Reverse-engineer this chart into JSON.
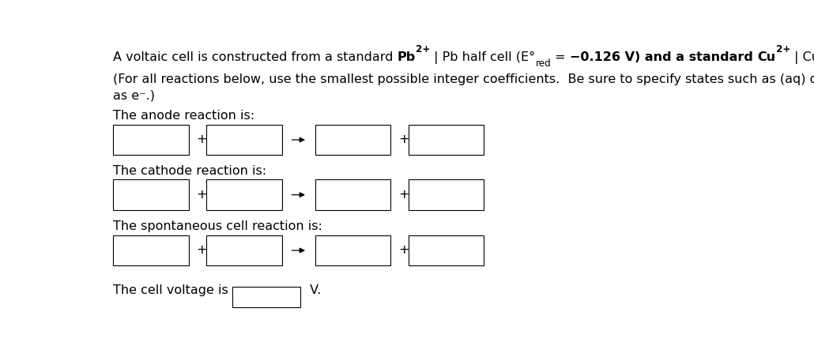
{
  "bg_color": "#ffffff",
  "fig_width": 10.3,
  "fig_height": 4.57,
  "dpi": 100,
  "text_color": "#000000",
  "font_size": 11.5,
  "label_anode": "The anode reaction is:",
  "label_cathode": "The cathode reaction is:",
  "label_spontaneous": "The spontaneous cell reaction is:",
  "label_voltage": "The cell voltage is",
  "voltage_unit": " V.",
  "line2": "(For all reactions below, use the smallest possible integer coefficients.  Be sure to specify states such as (aq) or (s).  If a box is not needed leave it blank.  Enter electrons",
  "line3": "as e⁻.)"
}
